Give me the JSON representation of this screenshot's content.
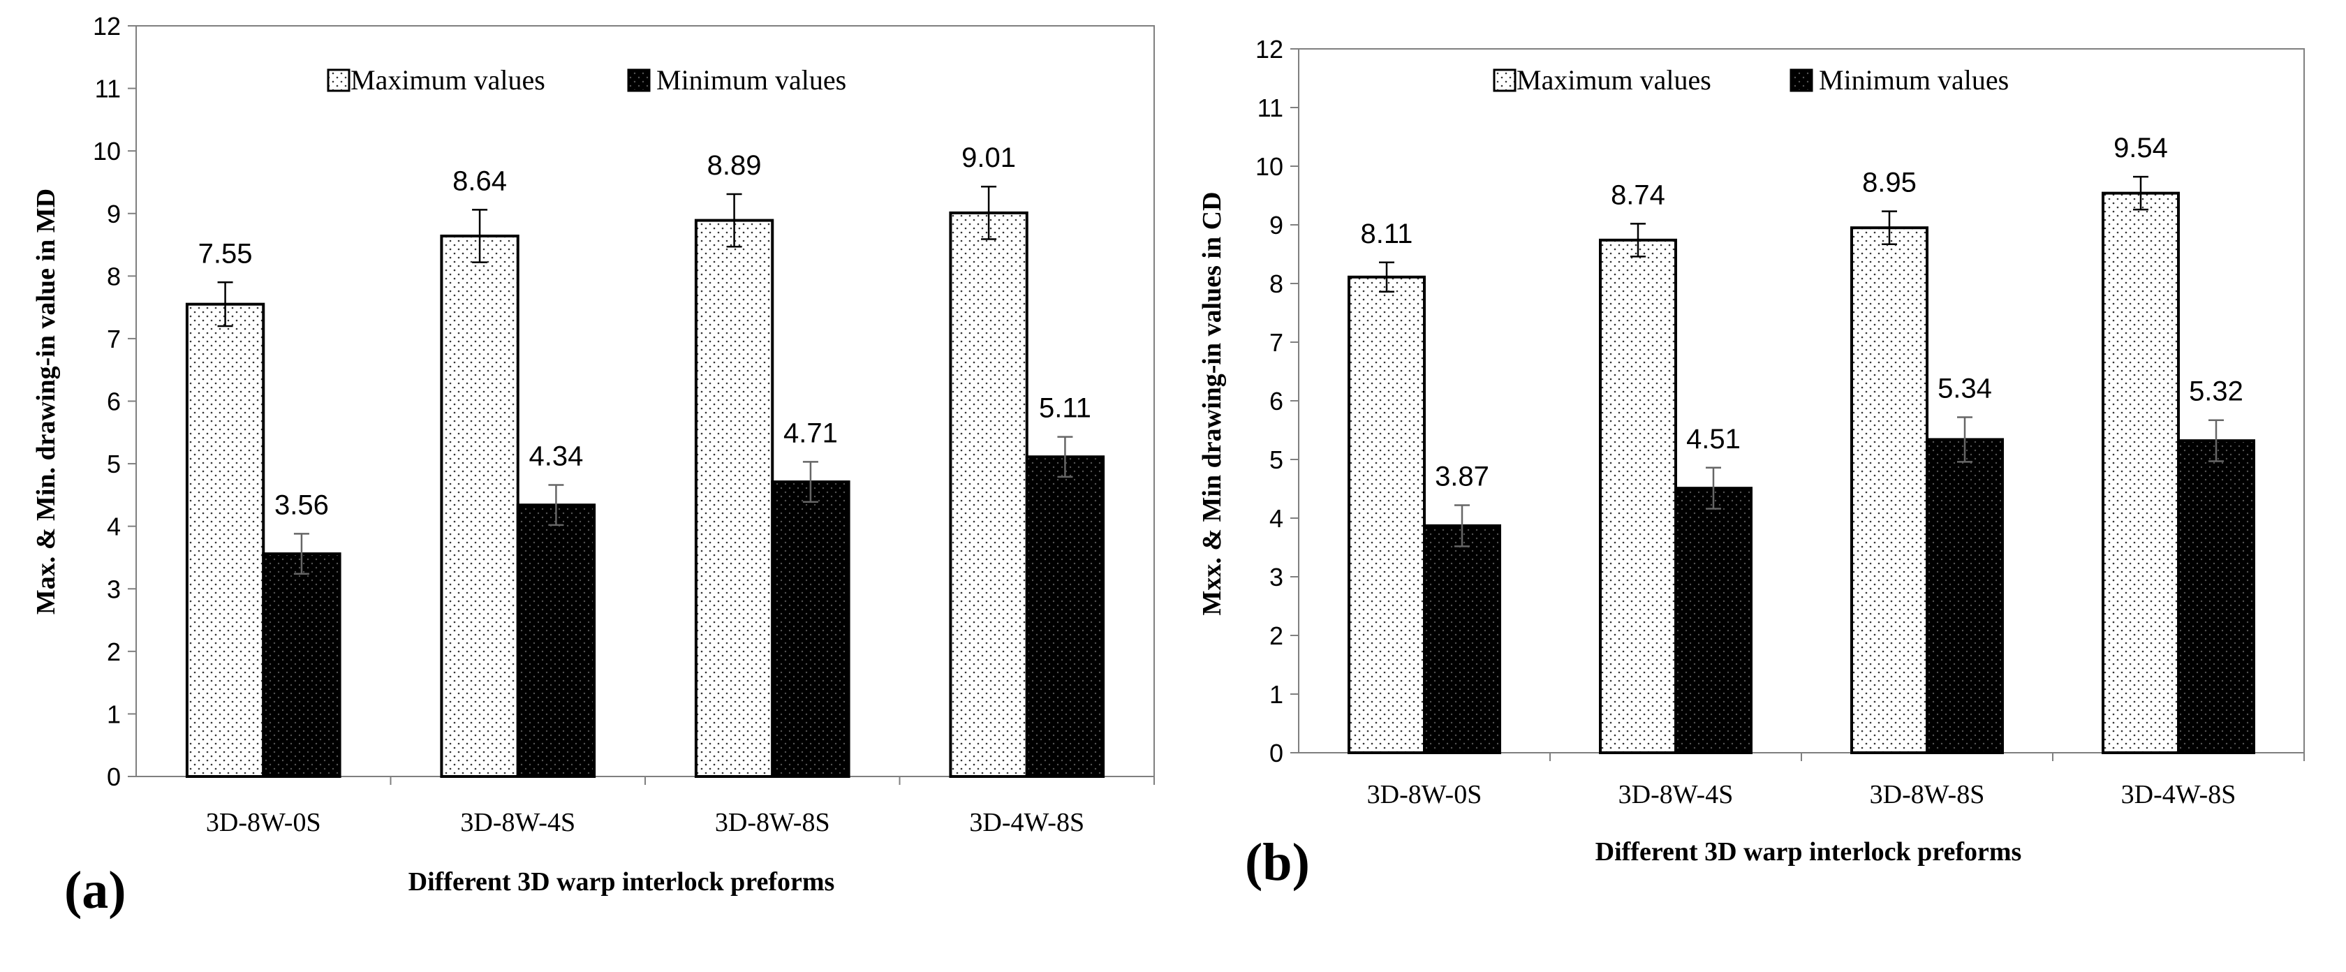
{
  "chart_data": [
    {
      "type": "bar",
      "panel_label": "(a)",
      "categories": [
        "3D-8W-0S",
        "3D-8W-4S",
        "3D-8W-8S",
        "3D-4W-8S"
      ],
      "series": [
        {
          "name": "Maximum values",
          "values": [
            7.55,
            8.64,
            8.89,
            9.01
          ],
          "errors": [
            0.35,
            0.42,
            0.42,
            0.42
          ],
          "pattern": "dotted"
        },
        {
          "name": "Minimum values",
          "values": [
            3.56,
            4.34,
            4.71,
            5.11
          ],
          "errors": [
            0.32,
            0.32,
            0.32,
            0.32
          ],
          "pattern": "solid"
        }
      ],
      "data_labels": [
        [
          "7.55",
          "8.64",
          "8.89",
          "9.01"
        ],
        [
          "3.56",
          "4.34",
          "4.71",
          "5.11"
        ]
      ],
      "xlabel": "Different 3D warp interlock preforms",
      "ylabel": "Max. & Min. drawing-in  value in MD",
      "ylim": [
        0,
        12
      ],
      "yticks": [
        "0",
        "1",
        "2",
        "3",
        "4",
        "5",
        "6",
        "7",
        "8",
        "9",
        "10",
        "11",
        "12"
      ],
      "legend_position": "top-center"
    },
    {
      "type": "bar",
      "panel_label": "(b)",
      "categories": [
        "3D-8W-0S",
        "3D-8W-4S",
        "3D-8W-8S",
        "3D-4W-8S"
      ],
      "series": [
        {
          "name": "Maximum values",
          "values": [
            8.11,
            8.74,
            8.95,
            9.54
          ],
          "errors": [
            0.25,
            0.28,
            0.28,
            0.28
          ],
          "pattern": "dotted"
        },
        {
          "name": "Minimum values",
          "values": [
            3.87,
            4.51,
            5.34,
            5.32
          ],
          "errors": [
            0.35,
            0.35,
            0.38,
            0.35
          ],
          "pattern": "solid"
        }
      ],
      "data_labels": [
        [
          "8.11",
          "8.74",
          "8.95",
          "9.54"
        ],
        [
          "3.87",
          "4.51",
          "5.34",
          "5.32"
        ]
      ],
      "xlabel": "Different 3D warp interlock preforms",
      "ylabel": "Mxx. &  Min drawing-in  values in CD",
      "ylim": [
        0,
        12
      ],
      "yticks": [
        "0",
        "1",
        "2",
        "3",
        "4",
        "5",
        "6",
        "7",
        "8",
        "9",
        "10",
        "11",
        "12"
      ],
      "legend_position": "top-center"
    }
  ]
}
